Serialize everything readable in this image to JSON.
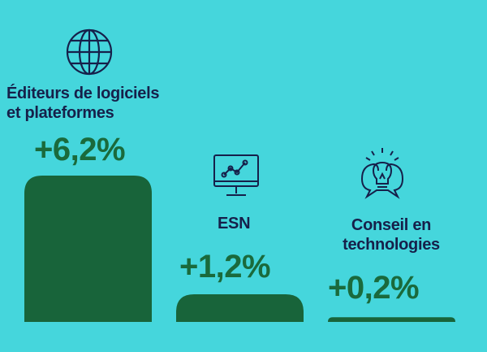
{
  "colors": {
    "background": "#45d6dc",
    "bar": "#18643a",
    "value_text": "#1a6a3c",
    "label_text": "#16204a"
  },
  "chart_data": {
    "type": "bar",
    "categories": [
      "Éditeurs de logiciels et plateformes",
      "ESN",
      "Conseil en technologies"
    ],
    "category_lines": [
      [
        "Éditeurs de logiciels",
        "et plateformes"
      ],
      [
        "ESN"
      ],
      [
        "Conseil en",
        "technologies"
      ]
    ],
    "values": [
      6.2,
      1.2,
      0.2
    ],
    "value_labels": [
      "+6,2%",
      "+1,2%",
      "+0,2%"
    ],
    "icons": [
      "globe-icon",
      "monitor-chart-icon",
      "lightbulb-idea-icon"
    ],
    "grid": false,
    "legend": "none"
  }
}
